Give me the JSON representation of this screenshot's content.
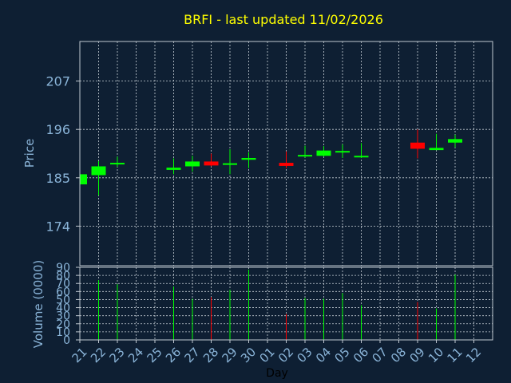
{
  "title": "BRFI - last updated 11/02/2026",
  "colors": {
    "background": "#0e1f33",
    "title": "#ffff00",
    "axis_text": "#8ab4d8",
    "frame": "#c0c8d0",
    "grid": "#c8d0d8",
    "up": "#00ff00",
    "down": "#ff0000",
    "xlabel": "#000000"
  },
  "chart_data": [
    {
      "type": "candlestick",
      "ylabel": "Price",
      "ylim": [
        165,
        216
      ],
      "yticks": [
        174,
        185,
        196,
        207
      ],
      "grid": true,
      "x_tick_labels": [
        "21",
        "22",
        "23",
        "24",
        "25",
        "26",
        "27",
        "28",
        "29",
        "30",
        "01",
        "02",
        "03",
        "04",
        "05",
        "06",
        "07",
        "08",
        "09",
        "10",
        "11",
        "12"
      ],
      "candles": [
        {
          "x": 0,
          "open": 183.5,
          "high": 185.8,
          "low": 183.2,
          "close": 185.8
        },
        {
          "x": 1,
          "open": 185.6,
          "high": 188.8,
          "low": 181.0,
          "close": 187.6
        },
        {
          "x": 2,
          "open": 188.2,
          "high": 189.8,
          "low": 187.5,
          "close": 188.4
        },
        {
          "x": 5,
          "open": 186.8,
          "high": 189.4,
          "low": 185.8,
          "close": 187.3
        },
        {
          "x": 6,
          "open": 187.6,
          "high": 190.0,
          "low": 186.4,
          "close": 188.7
        },
        {
          "x": 7,
          "open": 188.7,
          "high": 190.5,
          "low": 187.6,
          "close": 187.8
        },
        {
          "x": 8,
          "open": 188.0,
          "high": 191.5,
          "low": 185.8,
          "close": 188.3
        },
        {
          "x": 9,
          "open": 189.1,
          "high": 190.8,
          "low": 187.2,
          "close": 189.5
        },
        {
          "x": 11,
          "open": 188.4,
          "high": 191.0,
          "low": 187.2,
          "close": 187.7
        },
        {
          "x": 12,
          "open": 189.9,
          "high": 192.3,
          "low": 189.6,
          "close": 190.2
        },
        {
          "x": 13,
          "open": 190.0,
          "high": 192.2,
          "low": 189.8,
          "close": 191.2
        },
        {
          "x": 14,
          "open": 190.8,
          "high": 192.6,
          "low": 189.5,
          "close": 191.1
        },
        {
          "x": 15,
          "open": 189.7,
          "high": 192.9,
          "low": 189.5,
          "close": 190.0
        },
        {
          "x": 18,
          "open": 193.0,
          "high": 196.0,
          "low": 189.4,
          "close": 191.6
        },
        {
          "x": 19,
          "open": 191.3,
          "high": 195.0,
          "low": 191.3,
          "close": 191.8
        },
        {
          "x": 20,
          "open": 193.0,
          "high": 194.8,
          "low": 191.9,
          "close": 193.8
        }
      ]
    },
    {
      "type": "bar",
      "ylabel": "Volume (0000)",
      "xlabel": "Day",
      "ylim": [
        0,
        90
      ],
      "yticks": [
        0,
        10,
        20,
        30,
        40,
        50,
        60,
        70,
        80,
        90
      ],
      "grid": true,
      "x_tick_labels": [
        "21",
        "22",
        "23",
        "24",
        "25",
        "26",
        "27",
        "28",
        "29",
        "30",
        "01",
        "02",
        "03",
        "04",
        "05",
        "06",
        "07",
        "08",
        "09",
        "10",
        "11",
        "12"
      ],
      "bars": [
        {
          "x": 1,
          "value": 74,
          "direction": "up"
        },
        {
          "x": 2,
          "value": 69,
          "direction": "up"
        },
        {
          "x": 5,
          "value": 66,
          "direction": "up"
        },
        {
          "x": 6,
          "value": 51,
          "direction": "up"
        },
        {
          "x": 7,
          "value": 53,
          "direction": "down"
        },
        {
          "x": 8,
          "value": 62,
          "direction": "up"
        },
        {
          "x": 9,
          "value": 87,
          "direction": "up"
        },
        {
          "x": 11,
          "value": 32,
          "direction": "down"
        },
        {
          "x": 12,
          "value": 52,
          "direction": "up"
        },
        {
          "x": 13,
          "value": 51,
          "direction": "up"
        },
        {
          "x": 14,
          "value": 58,
          "direction": "up"
        },
        {
          "x": 15,
          "value": 43,
          "direction": "up"
        },
        {
          "x": 18,
          "value": 47,
          "direction": "down"
        },
        {
          "x": 19,
          "value": 39,
          "direction": "up"
        },
        {
          "x": 20,
          "value": 81,
          "direction": "up"
        }
      ]
    }
  ]
}
